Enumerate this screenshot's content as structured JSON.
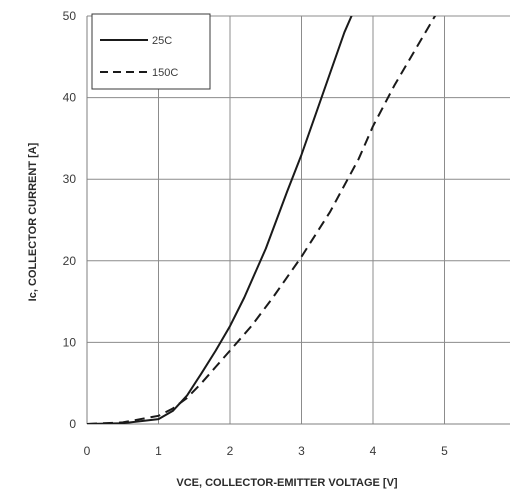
{
  "chart_data": {
    "type": "line",
    "xlabel": "VCE, COLLECTOR-EMITTER  VOLTAGE [V]",
    "ylabel": "Ic, COLLECTOR CURRENT [A]",
    "xlim": [
      0,
      6
    ],
    "ylim": [
      0,
      50
    ],
    "x_ticks": [
      "0",
      "1",
      "2",
      "3",
      "4",
      "5"
    ],
    "y_ticks": [
      "0",
      "10",
      "20",
      "30",
      "40",
      "50"
    ],
    "grid": true,
    "legend_position": "top-left",
    "series": [
      {
        "name": "25C",
        "style": "solid",
        "x": [
          0,
          0.5,
          1.0,
          1.2,
          1.4,
          1.6,
          1.8,
          2.0,
          2.2,
          2.5,
          2.8,
          3.0,
          3.2,
          3.4,
          3.6,
          3.75
        ],
        "y": [
          0,
          0.1,
          0.6,
          1.6,
          3.5,
          6.2,
          9.0,
          12.0,
          15.5,
          21.5,
          28.5,
          33.0,
          38.0,
          43.0,
          48.0,
          51.0
        ]
      },
      {
        "name": "150C",
        "style": "dashed",
        "x": [
          0,
          0.5,
          1.0,
          1.2,
          1.4,
          1.6,
          1.8,
          2.0,
          2.3,
          2.6,
          3.0,
          3.4,
          3.8,
          4.0,
          4.3,
          4.6,
          4.9
        ],
        "y": [
          0,
          0.2,
          1.0,
          1.9,
          3.2,
          5.0,
          7.0,
          9.0,
          12.0,
          15.5,
          20.5,
          26.0,
          32.5,
          36.5,
          41.5,
          46.0,
          50.5
        ]
      }
    ]
  }
}
